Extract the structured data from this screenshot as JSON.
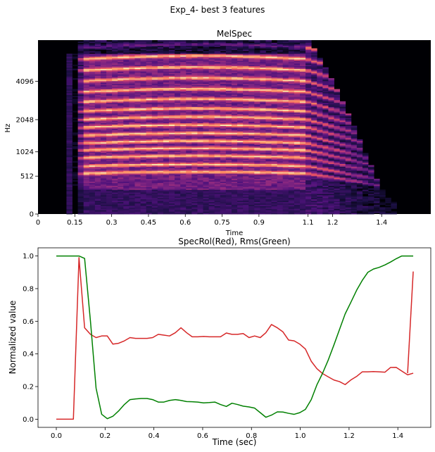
{
  "figure": {
    "suptitle": "Exp_4- best 3 features"
  },
  "chart_data": [
    {
      "type": "heatmap",
      "title": "MelSpec",
      "xlabel": "Time",
      "ylabel": "Hz",
      "xlim": [
        0,
        1.6
      ],
      "x_ticks": [
        0,
        0.15,
        0.3,
        0.45,
        0.6,
        0.75,
        0.9,
        1.1,
        1.2,
        1.4
      ],
      "x_tick_labels": [
        "0",
        "0.15",
        "0.3",
        "0.45",
        "0.6",
        "0.75",
        "0.9",
        "1.1",
        "1.2",
        "1.4"
      ],
      "y_scale": "mel",
      "y_ticks": [
        0,
        512,
        1024,
        2048,
        4096
      ],
      "y_tick_labels": [
        "0",
        "512",
        "1024",
        "2048",
        "4096"
      ],
      "colormap": "magma",
      "harmonics_hz": [
        560,
        700,
        880,
        1060,
        1250,
        1480,
        1750,
        2050,
        2400,
        2850,
        3400,
        4100,
        4900,
        5900,
        7100
      ],
      "activity": {
        "onset": 0.15,
        "sustain_end": 1.1,
        "decay_end": 1.47
      }
    },
    {
      "type": "line",
      "title": "SpecRol(Red), Rms(Green)",
      "xlabel": "Time (sec)",
      "ylabel": "Normalized value",
      "xlim": [
        -0.075,
        1.535
      ],
      "ylim": [
        -0.05,
        1.05
      ],
      "x_ticks": [
        0.0,
        0.2,
        0.4,
        0.6,
        0.8,
        1.0,
        1.2,
        1.4
      ],
      "x_tick_labels": [
        "0.0",
        "0.2",
        "0.4",
        "0.6",
        "0.8",
        "1.0",
        "1.2",
        "1.4"
      ],
      "y_ticks": [
        0.0,
        0.2,
        0.4,
        0.6,
        0.8,
        1.0
      ],
      "y_tick_labels": [
        "0.0",
        "0.2",
        "0.4",
        "0.6",
        "0.8",
        "1.0"
      ],
      "grid": false,
      "series": [
        {
          "color": "#d62728",
          "x": [
            0.0,
            0.07,
            0.093,
            0.116,
            0.14,
            0.163,
            0.186,
            0.209,
            0.232,
            0.255,
            0.279,
            0.302,
            0.325,
            0.348,
            0.372,
            0.395,
            0.418,
            0.441,
            0.464,
            0.488,
            0.511,
            0.534,
            0.557,
            0.58,
            0.604,
            0.627,
            0.65,
            0.673,
            0.697,
            0.72,
            0.743,
            0.766,
            0.79,
            0.813,
            0.836,
            0.859,
            0.882,
            0.906,
            0.929,
            0.952,
            0.975,
            0.998,
            1.021,
            1.045,
            1.068,
            1.091,
            1.114,
            1.138,
            1.161,
            1.184,
            1.207,
            1.231,
            1.254,
            1.277,
            1.3,
            1.323,
            1.347,
            1.37,
            1.393,
            1.416,
            1.44,
            1.463
          ],
          "y": [
            0.0,
            0.0,
            0.99,
            0.56,
            0.52,
            0.5,
            0.51,
            0.51,
            0.46,
            0.465,
            0.48,
            0.5,
            0.495,
            0.495,
            0.495,
            0.5,
            0.52,
            0.515,
            0.51,
            0.53,
            0.56,
            0.53,
            0.505,
            0.505,
            0.507,
            0.505,
            0.505,
            0.505,
            0.528,
            0.52,
            0.52,
            0.525,
            0.5,
            0.51,
            0.5,
            0.53,
            0.58,
            0.56,
            0.535,
            0.485,
            0.48,
            0.46,
            0.43,
            0.355,
            0.31,
            0.28,
            0.26,
            0.24,
            0.23,
            0.212,
            0.24,
            0.262,
            0.29,
            0.29,
            0.292,
            0.29,
            0.288,
            0.317,
            0.318,
            0.295,
            0.272,
            0.282
          ]
        },
        {
          "color": "#008000",
          "x": [
            0.0,
            0.07,
            0.093,
            0.116,
            0.14,
            0.163,
            0.186,
            0.209,
            0.232,
            0.255,
            0.279,
            0.302,
            0.325,
            0.348,
            0.372,
            0.395,
            0.418,
            0.441,
            0.464,
            0.488,
            0.511,
            0.534,
            0.557,
            0.58,
            0.604,
            0.627,
            0.65,
            0.673,
            0.697,
            0.72,
            0.743,
            0.766,
            0.79,
            0.813,
            0.836,
            0.859,
            0.882,
            0.906,
            0.929,
            0.952,
            0.975,
            0.998,
            1.021,
            1.045,
            1.068,
            1.091,
            1.114,
            1.138,
            1.161,
            1.184,
            1.207,
            1.231,
            1.254,
            1.277,
            1.3,
            1.323,
            1.347,
            1.37,
            1.393,
            1.416,
            1.44,
            1.463
          ],
          "y": [
            1.0,
            1.0,
            1.0,
            0.985,
            0.6,
            0.19,
            0.03,
            0.003,
            0.018,
            0.05,
            0.09,
            0.12,
            0.124,
            0.127,
            0.127,
            0.12,
            0.105,
            0.105,
            0.115,
            0.12,
            0.115,
            0.108,
            0.107,
            0.105,
            0.1,
            0.102,
            0.105,
            0.09,
            0.078,
            0.098,
            0.09,
            0.08,
            0.075,
            0.068,
            0.04,
            0.012,
            0.025,
            0.045,
            0.044,
            0.036,
            0.03,
            0.04,
            0.06,
            0.12,
            0.21,
            0.28,
            0.36,
            0.455,
            0.55,
            0.645,
            0.715,
            0.79,
            0.85,
            0.9,
            0.92,
            0.93,
            0.945,
            0.963,
            0.983,
            1.0,
            1.0,
            1.0
          ]
        },
        {
          "color": "#d62728",
          "x": [
            1.44,
            1.463
          ],
          "y": [
            0.282,
            0.905
          ]
        }
      ]
    }
  ]
}
